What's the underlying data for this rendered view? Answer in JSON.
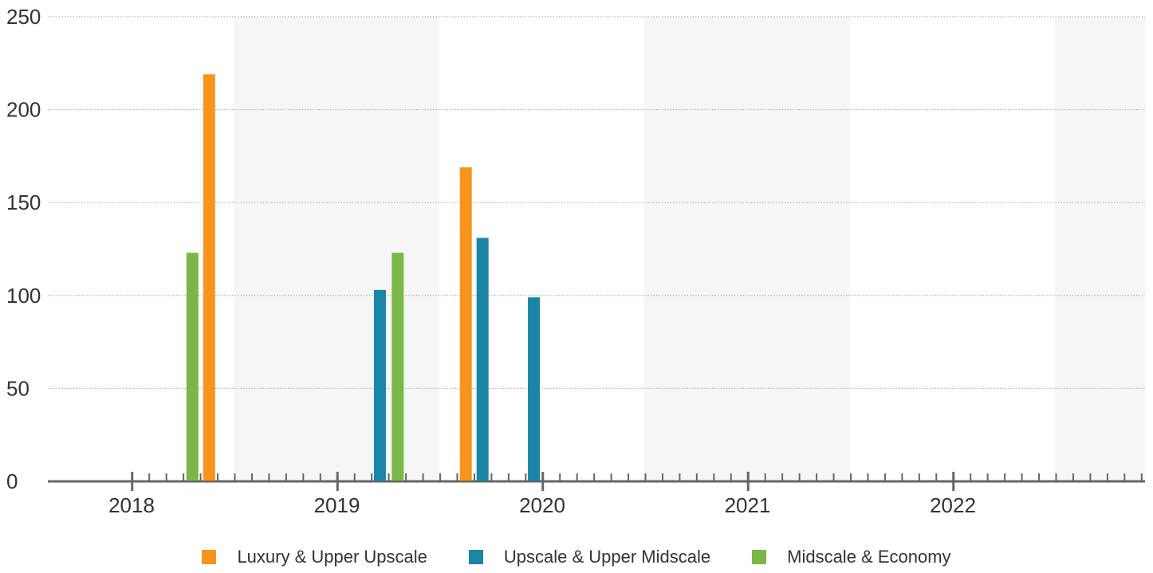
{
  "chart_data": {
    "type": "bar",
    "title": "",
    "xlabel": "",
    "ylabel": "",
    "ylim": [
      0,
      250
    ],
    "y_ticks": [
      "0",
      "50",
      "100",
      "150",
      "200",
      "250"
    ],
    "x_categories": [
      "2018",
      "2019",
      "2020",
      "2021",
      "2022"
    ],
    "grid": true,
    "legend_position": "bottom-center",
    "series": [
      {
        "name": "Luxury & Upper Upscale",
        "color": "#f7941d",
        "points": [
          {
            "x": "2018-Q4",
            "y": 219
          },
          {
            "x": "2020-Q1",
            "y": 169
          }
        ]
      },
      {
        "name": "Upscale & Upper Midscale",
        "color": "#1b85a6",
        "points": [
          {
            "x": "2019-Q3",
            "y": 103
          },
          {
            "x": "2020-Q1",
            "y": 131
          },
          {
            "x": "2020-Q2",
            "y": 99
          }
        ]
      },
      {
        "name": "Midscale & Economy",
        "color": "#7ab648",
        "points": [
          {
            "x": "2018-Q4",
            "y": 123
          },
          {
            "x": "2019-Q4",
            "y": 123
          }
        ]
      }
    ]
  }
}
